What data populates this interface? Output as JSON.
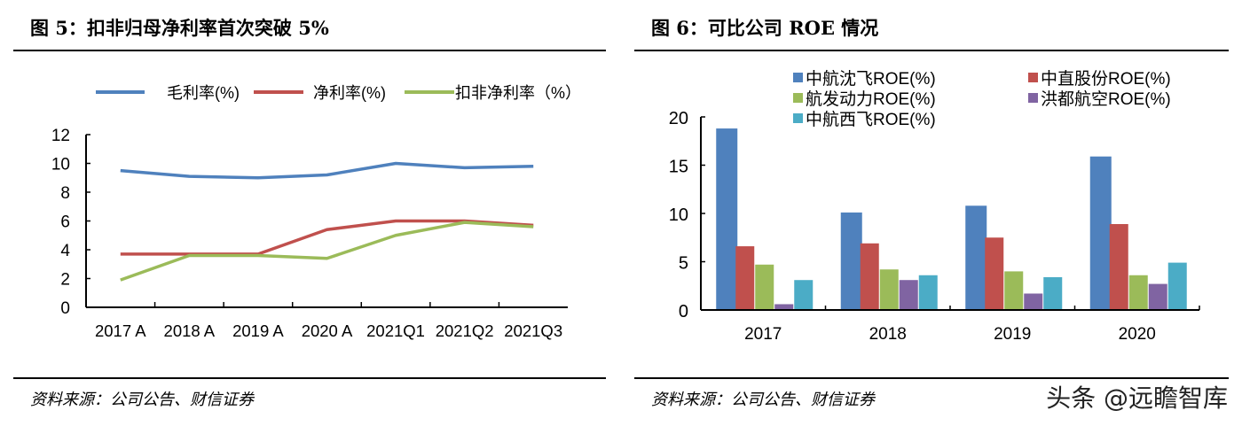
{
  "left": {
    "title": "图 5：扣非归母净利率首次突破 5%",
    "source": "资料来源：公司公告、财信证券"
  },
  "right": {
    "title": "图 6：可比公司 ROE 情况",
    "source": "资料来源：公司公告、财信证券"
  },
  "watermark": "头条 @远瞻智库",
  "chart_data": [
    {
      "type": "line",
      "title": "图 5：扣非归母净利率首次突破 5%",
      "categories": [
        "2017 A",
        "2018 A",
        "2019 A",
        "2020 A",
        "2021Q1",
        "2021Q2",
        "2021Q3"
      ],
      "ylim": [
        0,
        12
      ],
      "yticks": [
        "0",
        "2",
        "4",
        "6",
        "8",
        "10",
        "12"
      ],
      "legend_position": "top",
      "series": [
        {
          "name": "毛利率(%)",
          "color": "#4f81bd",
          "values": [
            9.5,
            9.1,
            9.0,
            9.2,
            10.0,
            9.7,
            9.8
          ]
        },
        {
          "name": "净利率(%)",
          "color": "#c0504d",
          "values": [
            3.7,
            3.7,
            3.7,
            5.4,
            6.0,
            6.0,
            5.7
          ]
        },
        {
          "name": "扣非净利率（%）",
          "color": "#9bbb59",
          "values": [
            1.9,
            3.6,
            3.6,
            3.4,
            5.0,
            5.9,
            5.6
          ]
        }
      ]
    },
    {
      "type": "bar",
      "title": "图 6：可比公司 ROE 情况",
      "categories": [
        "2017",
        "2018",
        "2019",
        "2020"
      ],
      "ylim": [
        0,
        20
      ],
      "yticks": [
        "0",
        "5",
        "10",
        "15",
        "20"
      ],
      "legend_position": "top",
      "series": [
        {
          "name": "中航沈飞ROE(%)",
          "color": "#4f81bd",
          "values": [
            18.8,
            10.1,
            10.8,
            15.9
          ]
        },
        {
          "name": "中直股份ROE(%)",
          "color": "#c0504d",
          "values": [
            6.6,
            6.9,
            7.5,
            8.9
          ]
        },
        {
          "name": "航发动力ROE(%)",
          "color": "#9bbb59",
          "values": [
            4.7,
            4.2,
            4.0,
            3.6
          ]
        },
        {
          "name": "洪都航空ROE(%)",
          "color": "#8064a2",
          "values": [
            0.6,
            3.1,
            1.7,
            2.7
          ]
        },
        {
          "name": "中航西飞ROE(%)",
          "color": "#4bacc6",
          "values": [
            3.1,
            3.6,
            3.4,
            4.9
          ]
        }
      ]
    }
  ]
}
